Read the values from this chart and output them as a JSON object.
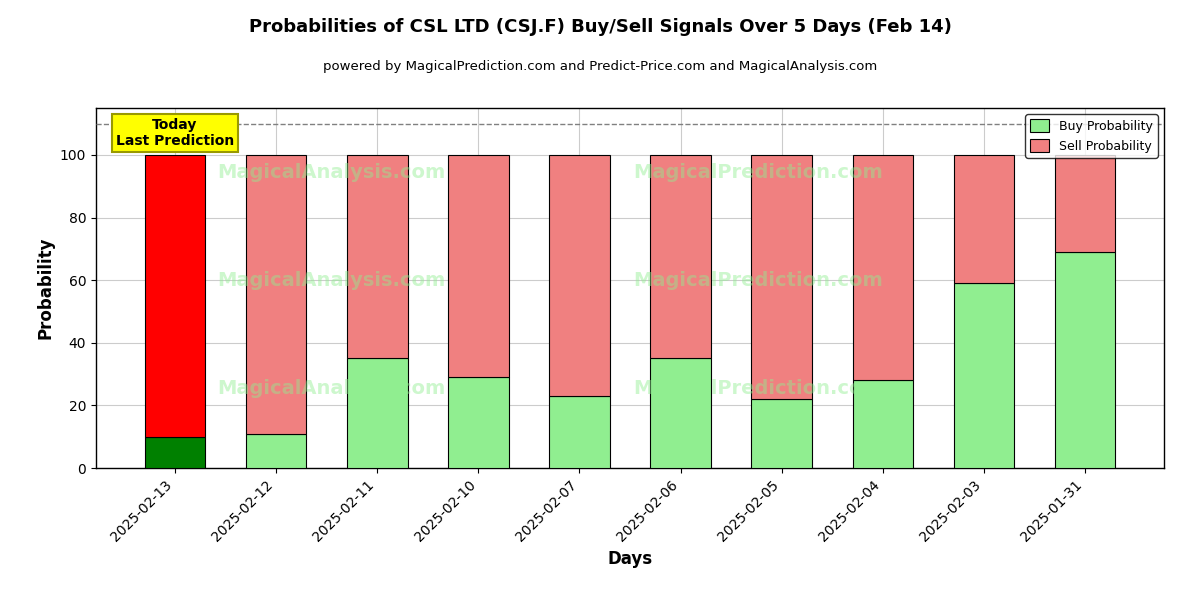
{
  "title": "Probabilities of CSL LTD (CSJ.F) Buy/Sell Signals Over 5 Days (Feb 14)",
  "subtitle": "powered by MagicalPrediction.com and Predict-Price.com and MagicalAnalysis.com",
  "xlabel": "Days",
  "ylabel": "Probability",
  "dates": [
    "2025-02-13",
    "2025-02-12",
    "2025-02-11",
    "2025-02-10",
    "2025-02-07",
    "2025-02-06",
    "2025-02-05",
    "2025-02-04",
    "2025-02-03",
    "2025-01-31"
  ],
  "buy_values": [
    10,
    11,
    35,
    29,
    23,
    35,
    22,
    28,
    59,
    69
  ],
  "sell_values": [
    90,
    89,
    65,
    71,
    77,
    65,
    78,
    72,
    41,
    31
  ],
  "buy_colors": [
    "#008000",
    "#90EE90",
    "#90EE90",
    "#90EE90",
    "#90EE90",
    "#90EE90",
    "#90EE90",
    "#90EE90",
    "#90EE90",
    "#90EE90"
  ],
  "sell_colors": [
    "#FF0000",
    "#F08080",
    "#F08080",
    "#F08080",
    "#F08080",
    "#F08080",
    "#F08080",
    "#F08080",
    "#F08080",
    "#F08080"
  ],
  "legend_buy_color": "#90EE90",
  "legend_sell_color": "#F08080",
  "today_box_color": "#FFFF00",
  "today_text": "Today\nLast Prediction",
  "dashed_line_y": 110,
  "ylim": [
    0,
    115
  ],
  "yticks": [
    0,
    20,
    40,
    60,
    80,
    100
  ],
  "background_color": "#ffffff",
  "grid_color": "#cccccc",
  "bar_edge_color": "#000000",
  "bar_width": 0.6,
  "watermark_color": "#90EE90",
  "watermark_alpha": 0.45,
  "watermark_fontsize": 14
}
